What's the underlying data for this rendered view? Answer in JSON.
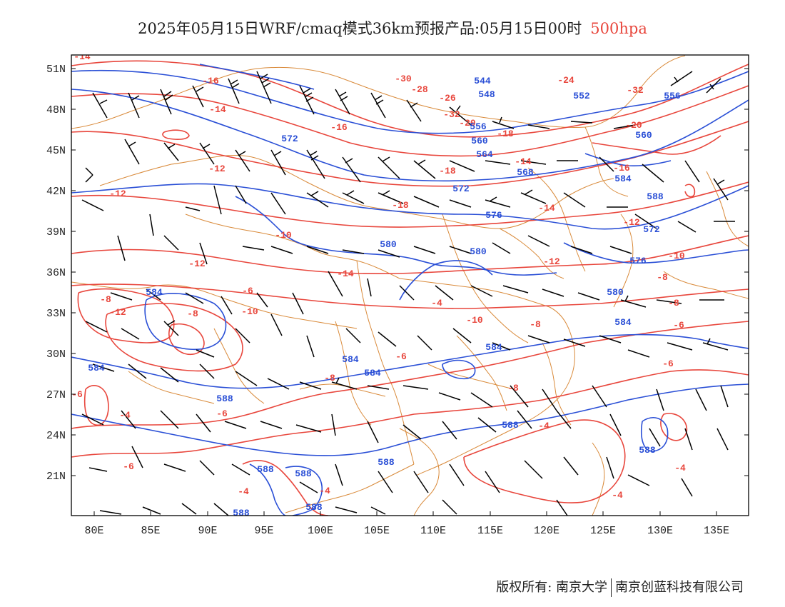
{
  "title": {
    "text": "2025年05月15日WRF/cmaq模式36km预报产品:05月15日00时",
    "level": "500hpa"
  },
  "axes": {
    "lat_labels": [
      "51N",
      "48N",
      "45N",
      "42N",
      "39N",
      "36N",
      "33N",
      "30N",
      "27N",
      "24N",
      "21N"
    ],
    "lon_labels": [
      "80E",
      "85E",
      "90E",
      "95E",
      "100E",
      "105E",
      "110E",
      "115E",
      "120E",
      "125E",
      "130E",
      "135E"
    ]
  },
  "colors": {
    "height_contour": "#2a4fd6",
    "temperature_contour": "#e8463c",
    "boundary": "#d98a3a",
    "wind_barb": "#000000"
  },
  "contour_labels": {
    "temperature": [
      "-14",
      "-16",
      "-14",
      "-16",
      "-30",
      "-28",
      "-26",
      "-32",
      "-20",
      "-18",
      "-24",
      "-32",
      "-20",
      "-12",
      "-12",
      "-18",
      "-14",
      "-16",
      "-18",
      "-14",
      "-12",
      "-10",
      "-10",
      "-12",
      "-14",
      "-12",
      "-8",
      "-8",
      "-6",
      "-4",
      "-8",
      "-12",
      "-10",
      "-8",
      "-10",
      "-8",
      "-6",
      "-6",
      "-6",
      "-8",
      "-8",
      "-6",
      "-4",
      "-6",
      "-4",
      "-4",
      "-6"
    ],
    "height": [
      "544",
      "548",
      "552",
      "556",
      "556",
      "560",
      "560",
      "572",
      "564",
      "568",
      "572",
      "576",
      "584",
      "588",
      "572",
      "580",
      "580",
      "576",
      "580",
      "584",
      "584",
      "584",
      "584",
      "584",
      "584",
      "588",
      "588",
      "588",
      "588",
      "588",
      "588",
      "588"
    ]
  },
  "footer": {
    "left": "版权所有: 南京大学",
    "right": "南京创蓝科技有限公司"
  }
}
